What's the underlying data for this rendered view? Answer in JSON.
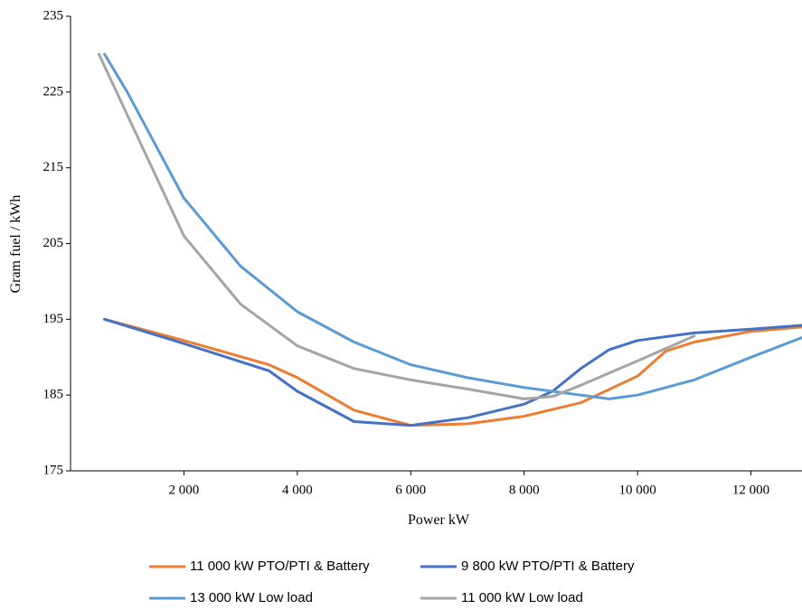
{
  "chart_data": {
    "type": "line",
    "x_label": "Power kW",
    "y_label": "Gram fuel / kWh",
    "xlim": [
      0,
      12900
    ],
    "ylim": [
      175,
      235
    ],
    "xticks": [
      {
        "value": 2000,
        "label": "2 000"
      },
      {
        "value": 4000,
        "label": "4 000"
      },
      {
        "value": 6000,
        "label": "6 000"
      },
      {
        "value": 8000,
        "label": "8 000"
      },
      {
        "value": 10000,
        "label": "10 000"
      },
      {
        "value": 12000,
        "label": "12 000"
      }
    ],
    "yticks": [
      175,
      185,
      195,
      205,
      215,
      225,
      235
    ],
    "grid": false,
    "series": [
      {
        "name": "11 000 kW PTO/PTI & Battery",
        "color": "#ed7d31",
        "x": [
          600,
          2000,
          3500,
          4000,
          5000,
          6000,
          7000,
          8000,
          9000,
          10000,
          10500,
          11000,
          12000,
          12900
        ],
        "values": [
          195,
          192.2,
          189,
          187.3,
          183,
          181,
          181.2,
          182.2,
          184,
          187.5,
          190.8,
          192,
          193.4,
          194
        ]
      },
      {
        "name": "9 800 kW PTO/PTI & Battery",
        "color": "#4472c4",
        "x": [
          600,
          2000,
          3500,
          4000,
          5000,
          6000,
          7000,
          8000,
          8500,
          9000,
          9500,
          10000,
          11000,
          12000,
          12900
        ],
        "values": [
          195,
          191.8,
          188.2,
          185.5,
          181.5,
          181,
          182,
          183.8,
          185.5,
          188.5,
          191,
          192.2,
          193.2,
          193.7,
          194.2
        ]
      },
      {
        "name": "13 000 kW Low load",
        "color": "#5b9bd5",
        "x": [
          600,
          1000,
          2000,
          3000,
          4000,
          5000,
          6000,
          7000,
          8000,
          9000,
          9500,
          10000,
          11000,
          12000,
          12900
        ],
        "values": [
          230,
          225,
          211,
          202,
          196,
          192,
          189,
          187.3,
          186,
          185,
          184.5,
          185,
          187,
          190,
          192.6
        ]
      },
      {
        "name": "11 000 kW Low load",
        "color": "#a5a5a5",
        "x": [
          500,
          1000,
          2000,
          3000,
          4000,
          5000,
          6000,
          7000,
          8000,
          8500,
          9000,
          10000,
          11000
        ],
        "values": [
          230,
          222,
          206,
          197,
          191.5,
          188.5,
          187,
          185.8,
          184.5,
          184.8,
          186.3,
          189.5,
          192.8
        ]
      }
    ]
  }
}
